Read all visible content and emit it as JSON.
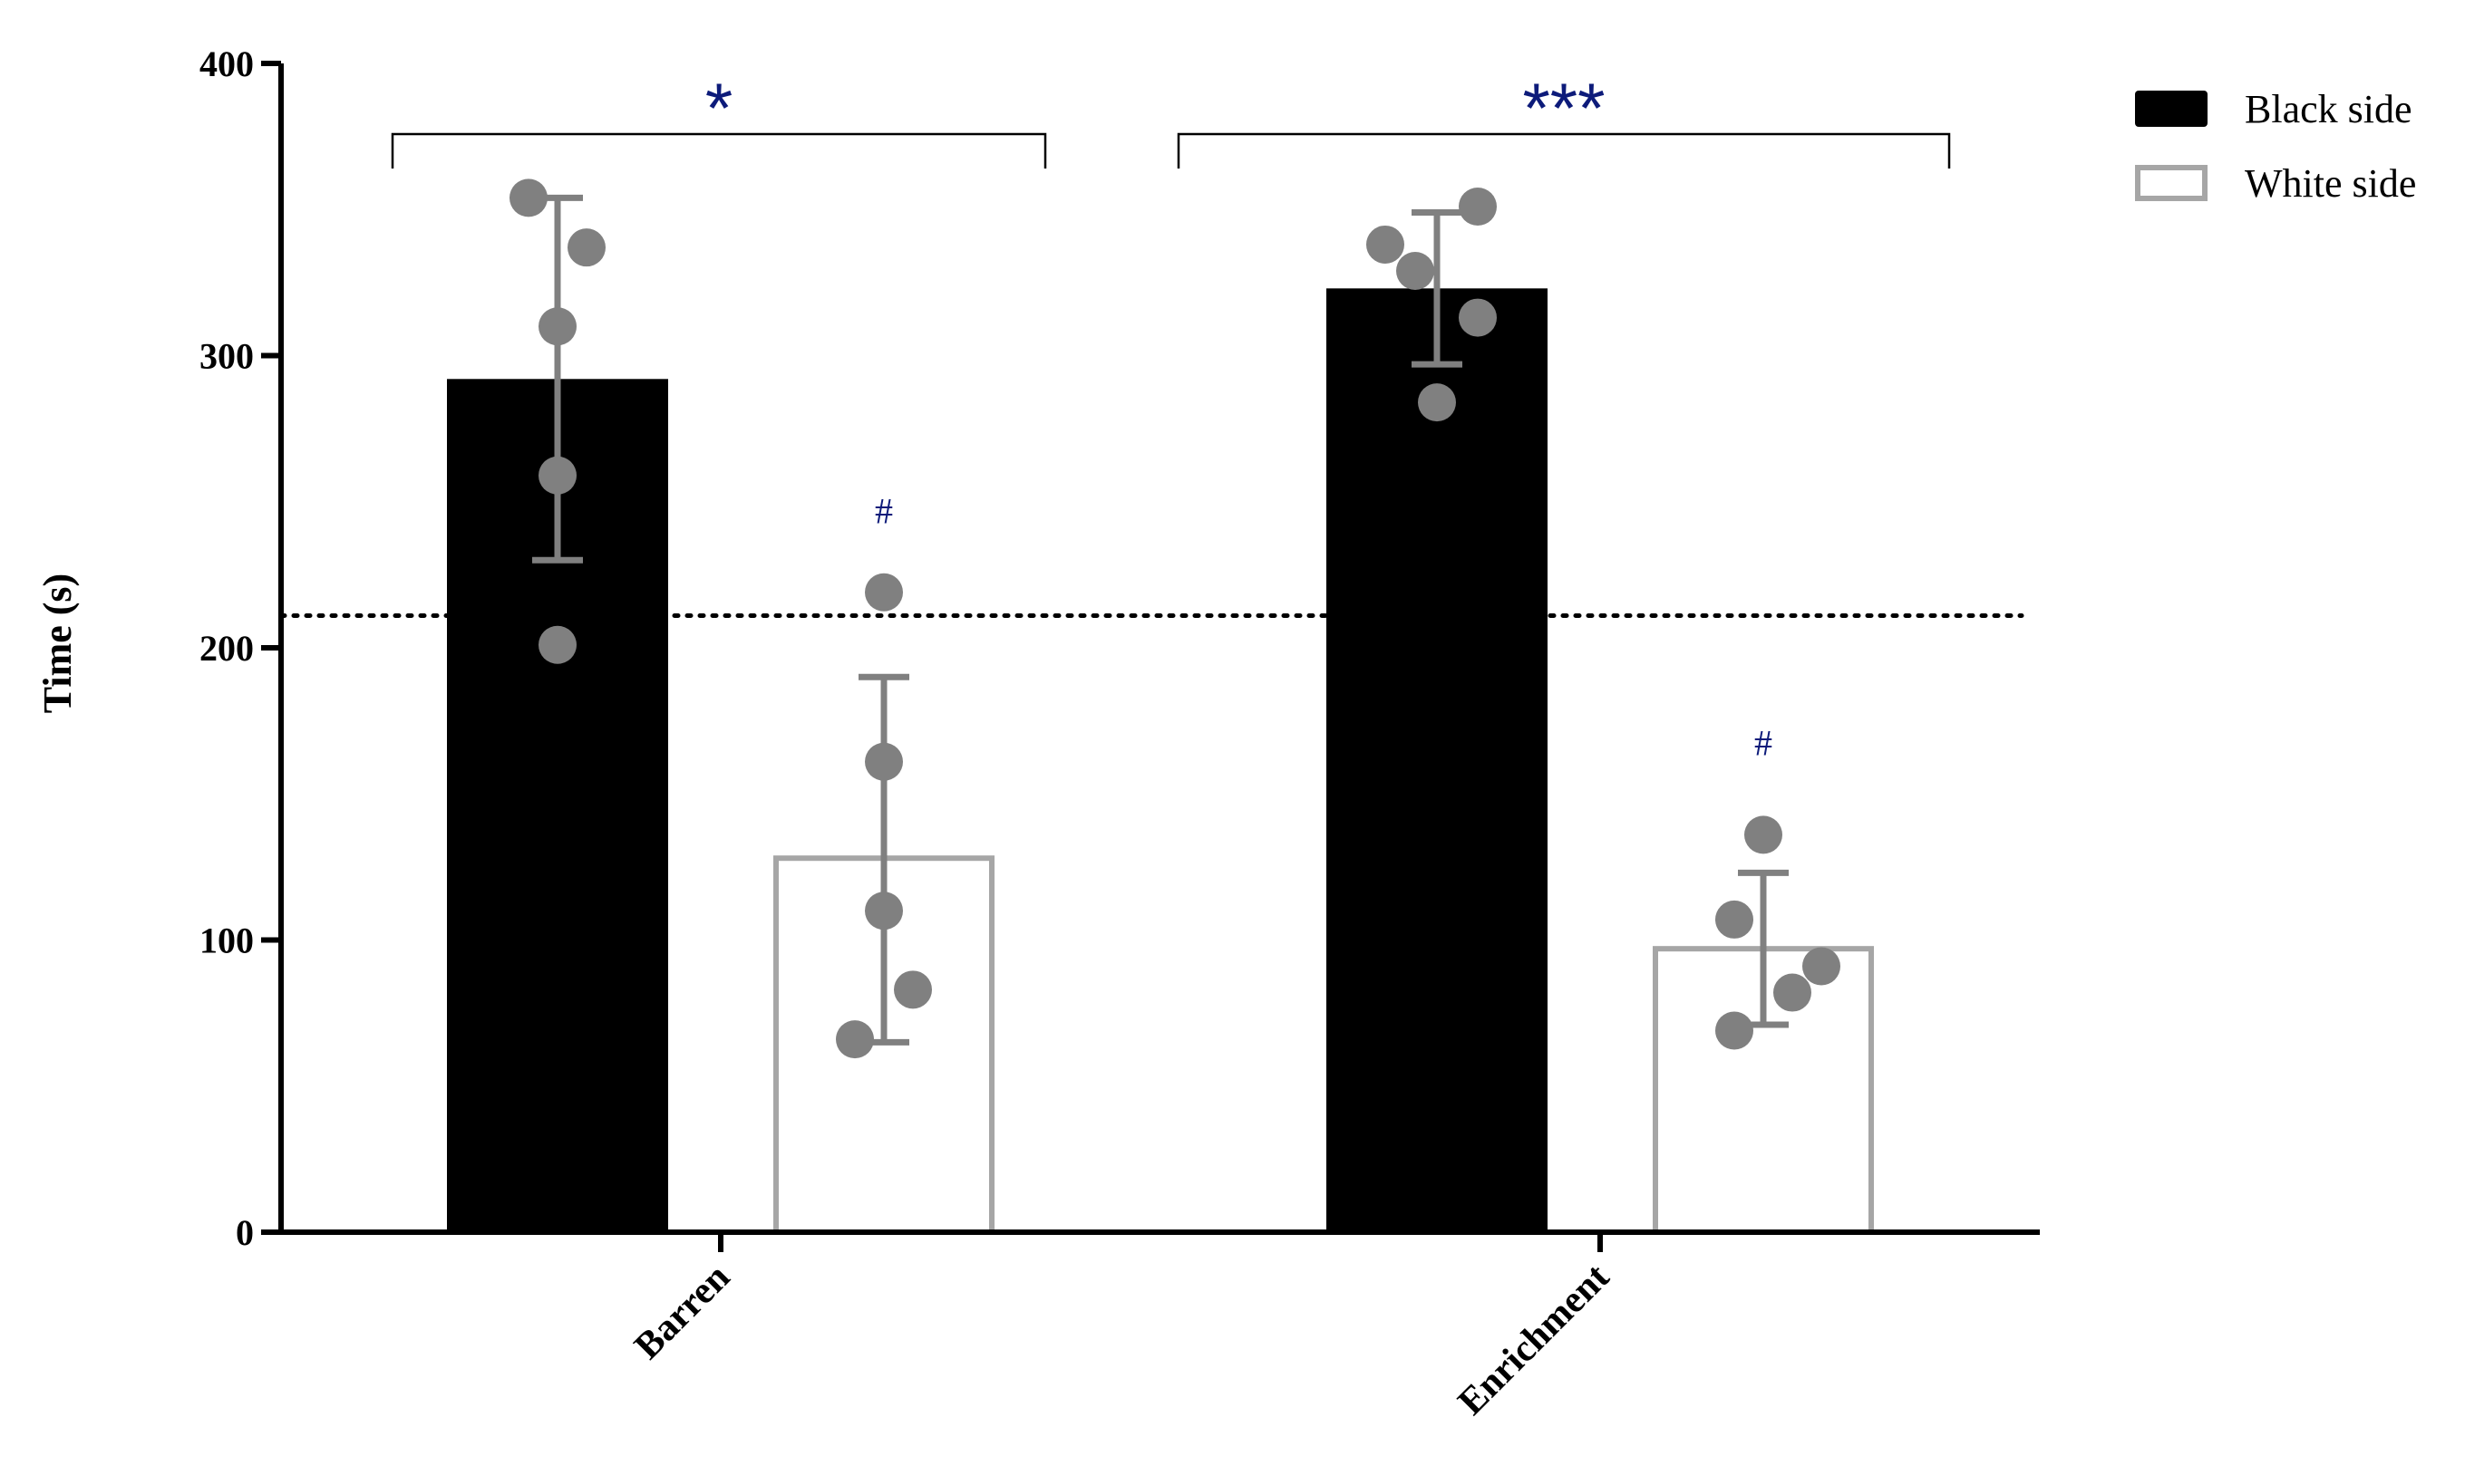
{
  "chart_data": {
    "type": "bar",
    "title": "",
    "xlabel": "",
    "ylabel": "Time (s)",
    "ylim": [
      0,
      400
    ],
    "yticks": [
      0,
      100,
      200,
      300,
      400
    ],
    "categories": [
      "Barren",
      "Enrichment"
    ],
    "series": [
      {
        "name": "Black side",
        "style": "filled",
        "fill": "#000000",
        "stroke": "#000000",
        "values": [
          292,
          323
        ],
        "error_low": [
          230,
          297
        ],
        "error_high": [
          354,
          349
        ],
        "points": [
          [
            354,
            337,
            310,
            259,
            201
          ],
          [
            351,
            338,
            329,
            313,
            284
          ]
        ]
      },
      {
        "name": "White side",
        "style": "outline",
        "fill": "#ffffff",
        "stroke": "#a6a6a6",
        "values": [
          128,
          97
        ],
        "error_low": [
          65,
          71
        ],
        "error_high": [
          190,
          123
        ],
        "points": [
          [
            219,
            161,
            110,
            83,
            66
          ],
          [
            136,
            107,
            91,
            82,
            69
          ]
        ],
        "annotations": [
          "#",
          "#"
        ]
      }
    ],
    "reference_line": {
      "y": 211,
      "style": "dotted"
    },
    "significance": [
      {
        "category": "Barren",
        "label": "*"
      },
      {
        "category": "Enrichment",
        "label": "***"
      }
    ],
    "legend_position": "top-right",
    "colors": {
      "point": "#808080",
      "errorbar": "#808080",
      "annotation": "#0d1b7a",
      "axis": "#000000"
    }
  }
}
